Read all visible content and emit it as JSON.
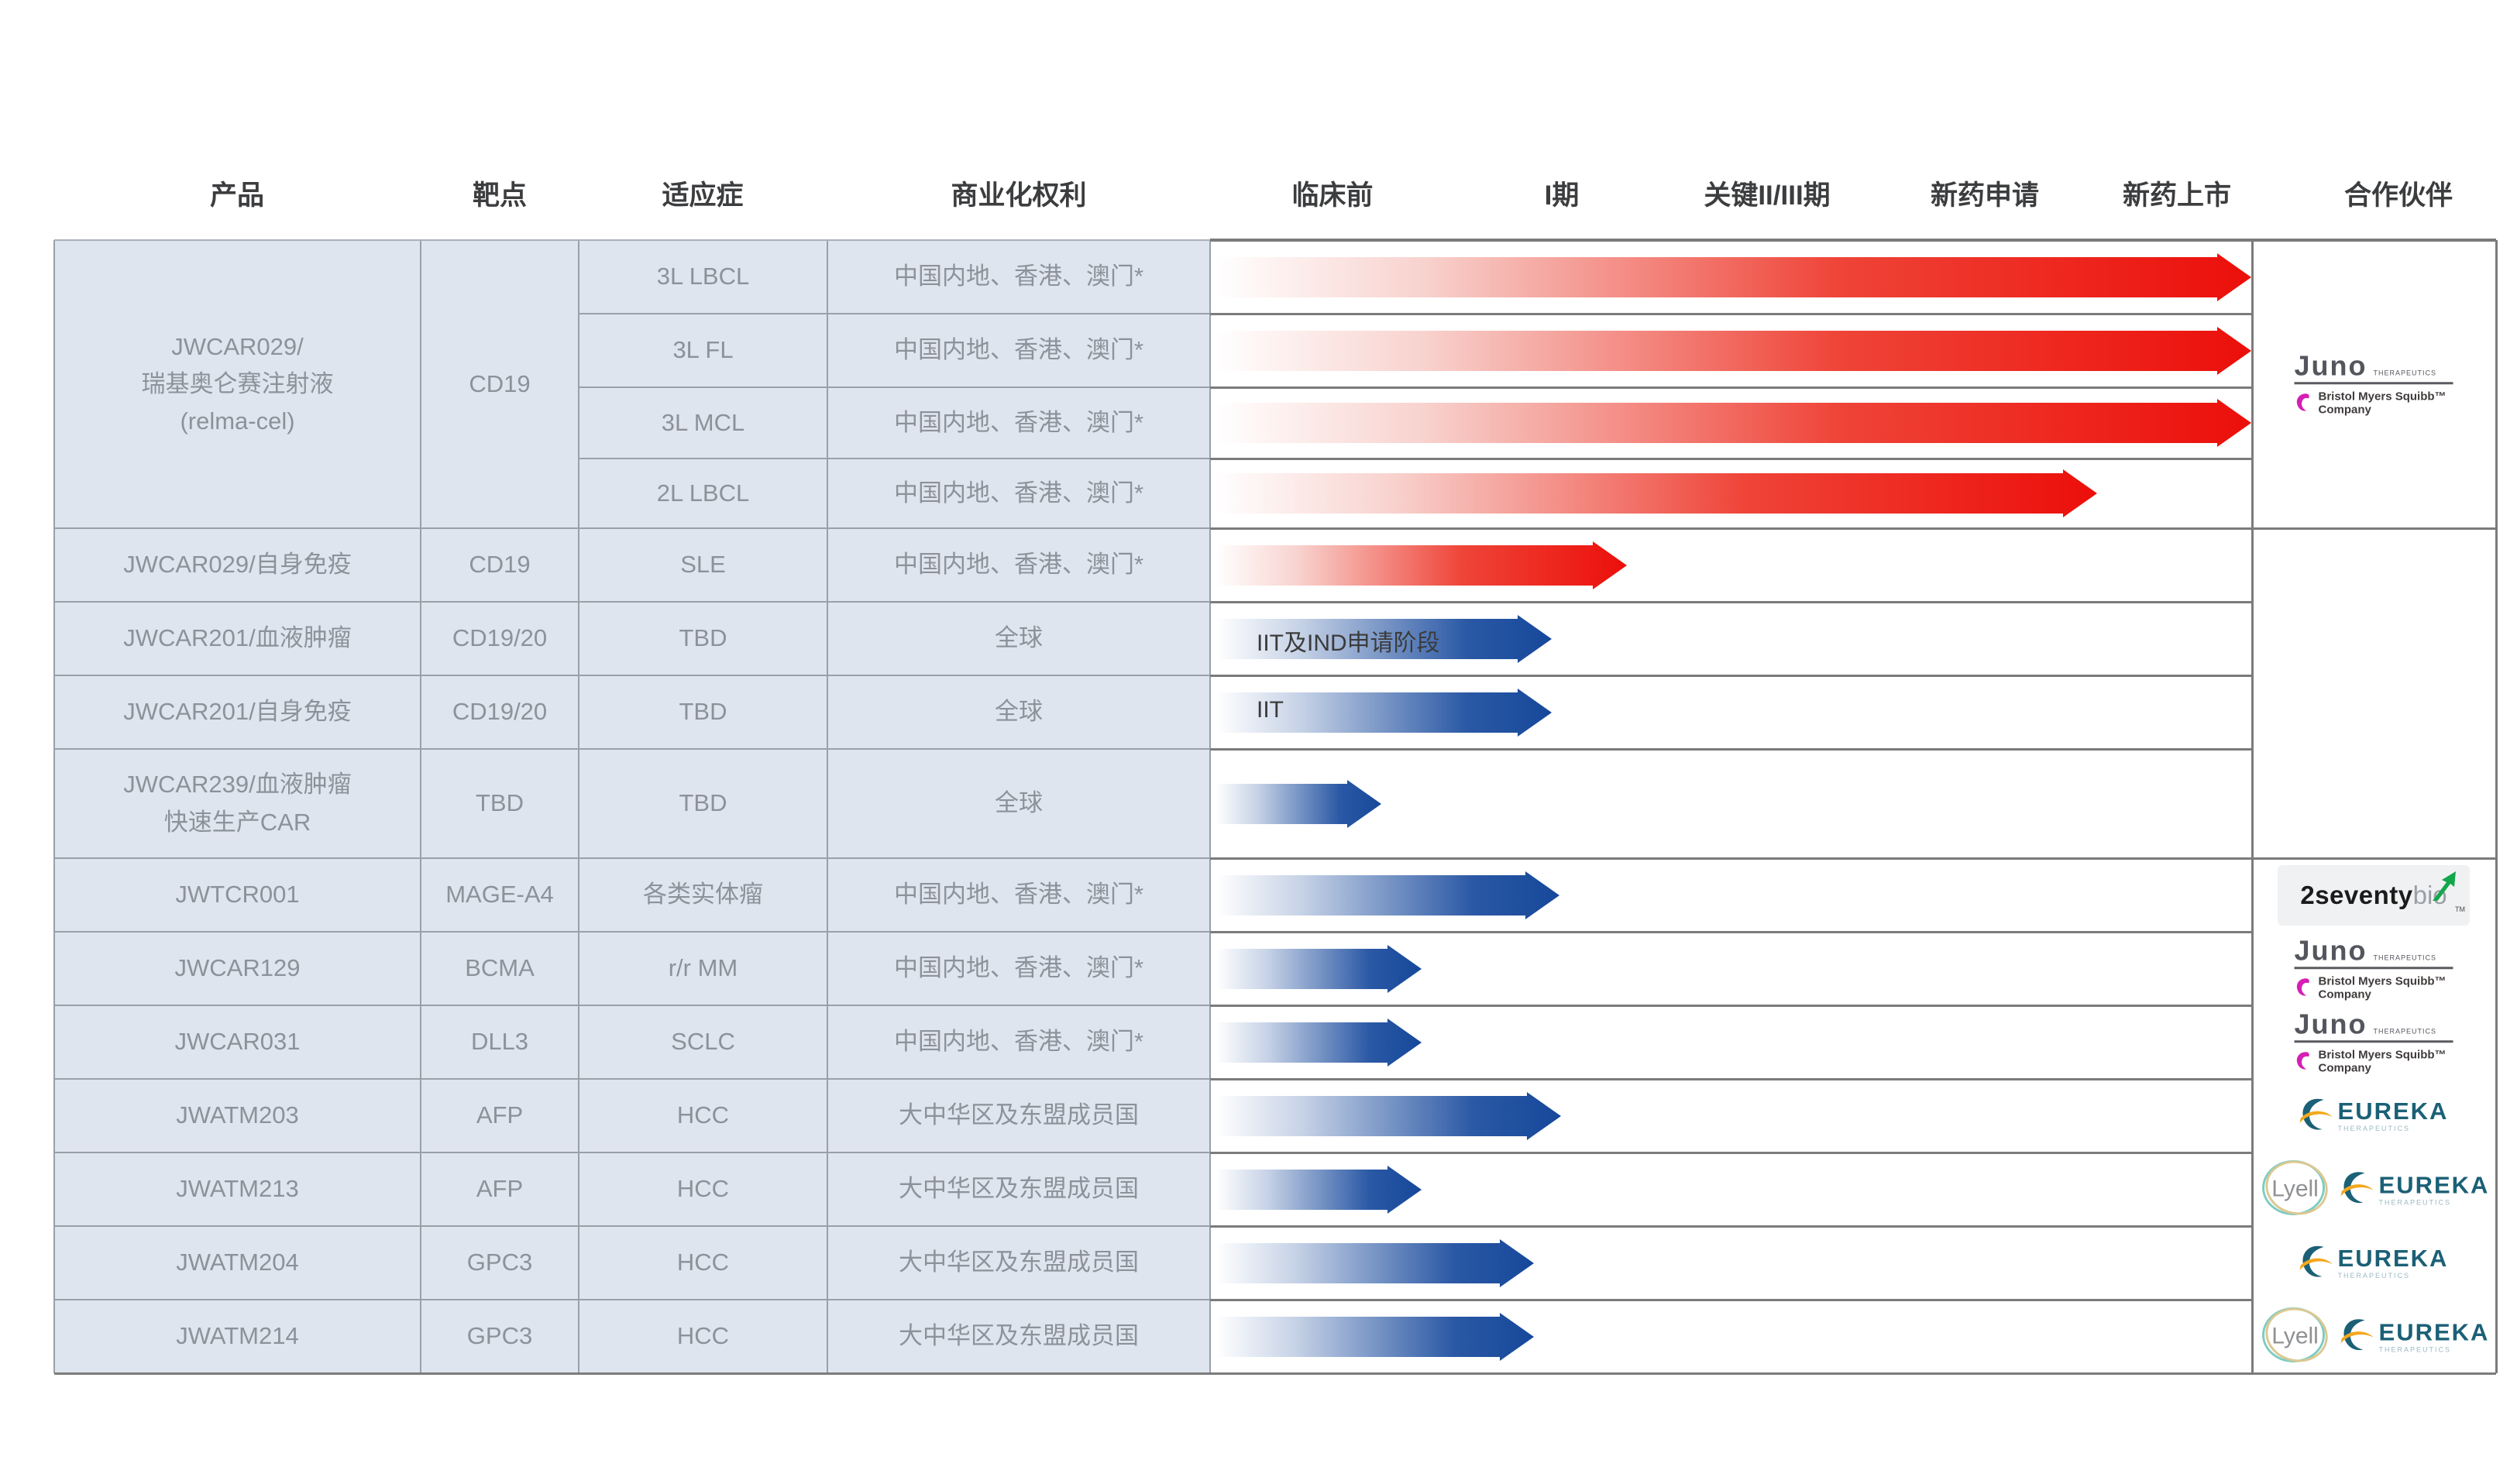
{
  "chart_data": {
    "type": "bar",
    "orientation": "horizontal",
    "legend_position": "none",
    "grid": false,
    "columns": [
      "产品",
      "靶点",
      "适应症",
      "商业化权利"
    ],
    "phases": [
      "临床前",
      "I期",
      "关键II/III期",
      "新药申请",
      "新药上市"
    ],
    "partner_header": "合作伙伴",
    "xlim_note": "end_frac is progress across the phase band from 临床前(0) to beyond 新药上市(1)",
    "rows": [
      {
        "product": [
          "JWCAR029/",
          "瑞基奥仑赛注射液",
          "(relma-cel)"
        ],
        "product_span": 4,
        "target": "CD19",
        "target_span": 4,
        "indication": "3L LBCL",
        "rights": "中国内地、香港、澳门*",
        "bar": {
          "color": "red",
          "end_frac": 0.999,
          "label": ""
        }
      },
      {
        "indication": "3L FL",
        "rights": "中国内地、香港、澳门*",
        "bar": {
          "color": "red",
          "end_frac": 0.999,
          "label": ""
        }
      },
      {
        "indication": "3L MCL",
        "rights": "中国内地、香港、澳门*",
        "bar": {
          "color": "red",
          "end_frac": 0.999,
          "label": ""
        }
      },
      {
        "indication": "2L LBCL",
        "rights": "中国内地、香港、澳门*",
        "bar": {
          "color": "red",
          "end_frac": 0.851,
          "label": ""
        }
      },
      {
        "product": [
          "JWCAR029/自身免疫"
        ],
        "product_span": 1,
        "target": "CD19",
        "target_span": 1,
        "indication": "SLE",
        "rights": "中国内地、香港、澳门*",
        "bar": {
          "color": "red",
          "end_frac": 0.4,
          "label": ""
        }
      },
      {
        "product": [
          "JWCAR201/血液肿瘤"
        ],
        "product_span": 1,
        "target": "CD19/20",
        "target_span": 1,
        "indication": "TBD",
        "rights": "全球",
        "bar": {
          "color": "blue",
          "end_frac": 0.328,
          "label": "IIT及IND申请阶段"
        }
      },
      {
        "product": [
          "JWCAR201/自身免疫"
        ],
        "product_span": 1,
        "target": "CD19/20",
        "target_span": 1,
        "indication": "TBD",
        "rights": "全球",
        "bar": {
          "color": "blue",
          "end_frac": 0.328,
          "label": "IIT"
        }
      },
      {
        "product": [
          "JWCAR239/血液肿瘤",
          "快速生产CAR"
        ],
        "product_span": 1,
        "target": "TBD",
        "target_span": 1,
        "indication": "TBD",
        "rights": "全球",
        "bar": {
          "color": "blue",
          "end_frac": 0.164,
          "label": ""
        }
      },
      {
        "product": [
          "JWTCR001"
        ],
        "product_span": 1,
        "target": "MAGE-A4",
        "target_span": 1,
        "indication": "各类实体瘤",
        "rights": "中国内地、香港、澳门*",
        "bar": {
          "color": "blue",
          "end_frac": 0.335,
          "label": ""
        }
      },
      {
        "product": [
          "JWCAR129"
        ],
        "product_span": 1,
        "target": "BCMA",
        "target_span": 1,
        "indication": "r/r MM",
        "rights": "中国内地、香港、澳门*",
        "bar": {
          "color": "blue",
          "end_frac": 0.203,
          "label": ""
        }
      },
      {
        "product": [
          "JWCAR031"
        ],
        "product_span": 1,
        "target": "DLL3",
        "target_span": 1,
        "indication": "SCLC",
        "rights": "中国内地、香港、澳门*",
        "bar": {
          "color": "blue",
          "end_frac": 0.203,
          "label": ""
        }
      },
      {
        "product": [
          "JWATM203"
        ],
        "product_span": 1,
        "target": "AFP",
        "target_span": 1,
        "indication": "HCC",
        "rights": "大中华区及东盟成员国",
        "bar": {
          "color": "blue",
          "end_frac": 0.337,
          "label": ""
        }
      },
      {
        "product": [
          "JWATM213"
        ],
        "product_span": 1,
        "target": "AFP",
        "target_span": 1,
        "indication": "HCC",
        "rights": "大中华区及东盟成员国",
        "bar": {
          "color": "blue",
          "end_frac": 0.203,
          "label": ""
        }
      },
      {
        "product": [
          "JWATM204"
        ],
        "product_span": 1,
        "target": "GPC3",
        "target_span": 1,
        "indication": "HCC",
        "rights": "大中华区及东盟成员国",
        "bar": {
          "color": "blue",
          "end_frac": 0.311,
          "label": ""
        }
      },
      {
        "product": [
          "JWATM214"
        ],
        "product_span": 1,
        "target": "GPC3",
        "target_span": 1,
        "indication": "HCC",
        "rights": "大中华区及东盟成员国",
        "bar": {
          "color": "blue",
          "end_frac": 0.311,
          "label": ""
        }
      }
    ],
    "partner_cells": [
      {
        "from": 0,
        "span": 4,
        "center_logos": [
          "juno-bms"
        ]
      },
      {
        "from": 4,
        "span": 4,
        "center_logos": []
      },
      {
        "from": 8,
        "span": 7,
        "row_logos": [
          [
            "2seventybio"
          ],
          [
            "juno-bms"
          ],
          [
            "juno-bms"
          ],
          [
            "eureka"
          ],
          [
            "lyell",
            "eureka"
          ],
          [
            "eureka"
          ],
          [
            "lyell",
            "eureka"
          ]
        ]
      }
    ],
    "logo_labels": {
      "juno_word": "Juno",
      "juno_sub": "THERAPEUTICS",
      "bms_line1": "Bristol Myers Squibb™",
      "bms_line2": "Company",
      "tsb_black": "2seventy",
      "tsb_grey": "bio",
      "tsb_tm": "TM",
      "eureka_word": "EUREKA",
      "eureka_sub": "THERAPEUTICS",
      "lyell_word": "Lyell"
    },
    "colors": {
      "bar_red": "#ec0f0a",
      "bar_blue": "#16489a",
      "left_cell_bg": "#dfe5ef",
      "left_cell_text": "#8b9299",
      "header_text": "#3c3d3f",
      "grid_dark": "#7b7b7b",
      "grid_light": "#98a0a8",
      "bms_magenta": "#d61fb4",
      "tsb_green": "#12a74b",
      "eureka_teal": "#1b6076",
      "eureka_orange": "#f4a71d",
      "lyell_teal": "#7fccc3",
      "lyell_sand": "#dcc892"
    }
  }
}
